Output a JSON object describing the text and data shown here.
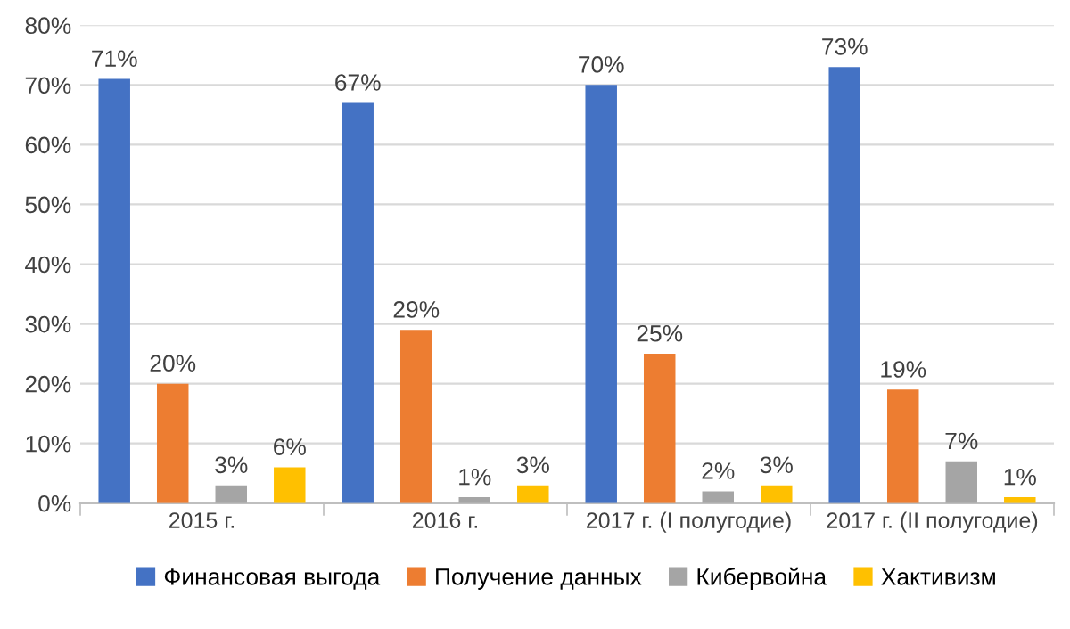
{
  "chart_data": {
    "type": "bar",
    "categories": [
      "2015 г.",
      "2016 г.",
      "2017 г. (I полугодие)",
      "2017 г. (II полугодие)"
    ],
    "series": [
      {
        "name": "Финансовая выгода",
        "color": "#4472c4",
        "values": [
          71,
          67,
          70,
          73
        ],
        "value_labels": [
          "71%",
          "67%",
          "70%",
          "73%"
        ]
      },
      {
        "name": "Получение данных",
        "color": "#ed7d31",
        "values": [
          20,
          29,
          25,
          19
        ],
        "value_labels": [
          "20%",
          "29%",
          "25%",
          "19%"
        ]
      },
      {
        "name": "Кибервойна",
        "color": "#a5a5a5",
        "values": [
          3,
          1,
          2,
          7
        ],
        "value_labels": [
          "3%",
          "1%",
          "2%",
          "7%"
        ]
      },
      {
        "name": "Хактивизм",
        "color": "#ffc000",
        "values": [
          6,
          3,
          3,
          1
        ],
        "value_labels": [
          "6%",
          "3%",
          "3%",
          "1%"
        ]
      }
    ],
    "ylim": [
      0,
      80
    ],
    "yticks": [
      {
        "value": 0,
        "label": "0%"
      },
      {
        "value": 10,
        "label": "10%"
      },
      {
        "value": 20,
        "label": "20%"
      },
      {
        "value": 30,
        "label": "30%"
      },
      {
        "value": 40,
        "label": "40%"
      },
      {
        "value": 50,
        "label": "50%"
      },
      {
        "value": 60,
        "label": "60%"
      },
      {
        "value": 70,
        "label": "70%"
      },
      {
        "value": 80,
        "label": "80%"
      }
    ],
    "grid": "y",
    "legend": "bottom"
  }
}
